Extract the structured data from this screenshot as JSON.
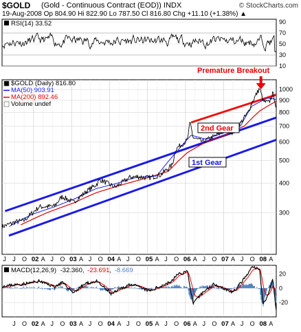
{
  "header": {
    "symbol": "$GOLD",
    "name": "(Gold - Continuous Contract (EOD)) INDX",
    "quote_line": "19-Aug-2008   Op 804.90  Hi 822.90  Lo 787.50  Cl 816.80  Chg +11.10 (+1.38%) ▲",
    "brand": "© StockCharts.com"
  },
  "colors": {
    "price": "#000000",
    "ma50": "#1a1aff",
    "ma200": "#e00000",
    "channel": "#1a1ae6",
    "breakout_line": "#ee1111",
    "macd_hist": "#4a7fbf",
    "annotation_red": "#ee0000",
    "annotation_blue": "#1a1ad6"
  },
  "chart_data": [
    {
      "type": "line",
      "panel": "rsi",
      "label": "RSI(14) 33.52",
      "y_ticks": [
        10,
        30,
        50,
        70,
        90
      ],
      "ylim": [
        10,
        95
      ],
      "reference_lines": [
        30,
        70
      ],
      "series": [
        {
          "name": "RSI(14)",
          "last": 33.52
        }
      ]
    },
    {
      "type": "line",
      "panel": "price",
      "y_scale": "log",
      "ylim": [
        200,
        1100
      ],
      "y_ticks": [
        300,
        400,
        500,
        600,
        700,
        800,
        900,
        1000
      ],
      "legend": {
        "placement": "top-left",
        "entries": [
          {
            "label": "$GOLD (Daily) 816.80",
            "key": "price"
          },
          {
            "label": "MA(50) 903.91",
            "key": "ma50"
          },
          {
            "label": "MA(200) 892.46",
            "key": "ma200"
          },
          {
            "label": "Volume undef",
            "key": "volume"
          }
        ]
      },
      "x_ticks": [
        "J",
        "J",
        "O",
        "02",
        "A",
        "J",
        "O",
        "03",
        "A",
        "J",
        "O",
        "04",
        "A",
        "J",
        "O",
        "05",
        "A",
        "J",
        "O",
        "06",
        "A",
        "J",
        "O",
        "07",
        "A",
        "J",
        "O",
        "08",
        "A",
        "J"
      ],
      "x_start": 2001.42,
      "x_end": 2008.64,
      "anchors": [
        [
          2001.42,
          262
        ],
        [
          2001.8,
          275
        ],
        [
          2002.0,
          278
        ],
        [
          2002.4,
          318
        ],
        [
          2002.8,
          320
        ],
        [
          2003.0,
          352
        ],
        [
          2003.3,
          332
        ],
        [
          2003.6,
          365
        ],
        [
          2003.9,
          395
        ],
        [
          2004.0,
          415
        ],
        [
          2004.3,
          392
        ],
        [
          2004.4,
          385
        ],
        [
          2004.8,
          425
        ],
        [
          2005.0,
          427
        ],
        [
          2005.3,
          422
        ],
        [
          2005.6,
          435
        ],
        [
          2005.9,
          478
        ],
        [
          2006.0,
          560
        ],
        [
          2006.3,
          610
        ],
        [
          2006.37,
          725
        ],
        [
          2006.45,
          625
        ],
        [
          2006.7,
          600
        ],
        [
          2007.0,
          632
        ],
        [
          2007.3,
          670
        ],
        [
          2007.5,
          660
        ],
        [
          2007.7,
          720
        ],
        [
          2007.9,
          800
        ],
        [
          2008.0,
          880
        ],
        [
          2008.2,
          1011
        ],
        [
          2008.3,
          890
        ],
        [
          2008.45,
          880
        ],
        [
          2008.55,
          960
        ],
        [
          2008.6,
          910
        ],
        [
          2008.64,
          817
        ]
      ],
      "ma50_anchors": [
        [
          2001.6,
          262
        ],
        [
          2002.2,
          295
        ],
        [
          2002.8,
          318
        ],
        [
          2003.3,
          342
        ],
        [
          2003.9,
          380
        ],
        [
          2004.4,
          398
        ],
        [
          2004.9,
          422
        ],
        [
          2005.5,
          430
        ],
        [
          2006.0,
          540
        ],
        [
          2006.4,
          640
        ],
        [
          2006.8,
          615
        ],
        [
          2007.3,
          660
        ],
        [
          2007.7,
          700
        ],
        [
          2008.0,
          850
        ],
        [
          2008.4,
          920
        ],
        [
          2008.55,
          915
        ],
        [
          2008.64,
          904
        ]
      ],
      "ma200_anchors": [
        [
          2001.9,
          266
        ],
        [
          2002.6,
          300
        ],
        [
          2003.3,
          330
        ],
        [
          2003.9,
          365
        ],
        [
          2004.6,
          395
        ],
        [
          2005.2,
          420
        ],
        [
          2005.8,
          450
        ],
        [
          2006.3,
          540
        ],
        [
          2006.8,
          600
        ],
        [
          2007.3,
          640
        ],
        [
          2007.8,
          700
        ],
        [
          2008.2,
          810
        ],
        [
          2008.64,
          892
        ]
      ],
      "trend_lines": [
        {
          "name": "1st Gear upper",
          "color_key": "channel",
          "from": [
            2001.5,
            305
          ],
          "to": [
            2008.64,
            760
          ]
        },
        {
          "name": "1st Gear lower",
          "color_key": "channel",
          "from": [
            2001.6,
            240
          ],
          "to": [
            2008.64,
            612
          ]
        },
        {
          "name": "2nd Gear",
          "color_key": "breakout_line",
          "from": [
            2006.4,
            725
          ],
          "to": [
            2008.64,
            950
          ]
        }
      ],
      "annotations": [
        {
          "text": "Premature Breakout",
          "color_key": "annotation_red",
          "arrow": true,
          "at": [
            2008.2,
            1011
          ]
        },
        {
          "text": "2nd Gear",
          "color_key": "annotation_red",
          "box": true
        },
        {
          "text": "1st Gear",
          "color_key": "annotation_blue",
          "box": true
        }
      ]
    },
    {
      "type": "line",
      "panel": "macd",
      "label_prefix": "MACD(12,26,9)",
      "values": [
        "-32.360",
        "-23.691",
        "-8.669"
      ],
      "y_ticks": [
        20,
        0,
        -20
      ],
      "ylim": [
        -40,
        32
      ],
      "x_ticks": [
        "J",
        "O",
        "02",
        "A",
        "J",
        "O",
        "03",
        "A",
        "J",
        "O",
        "04",
        "A",
        "J",
        "O",
        "05",
        "A",
        "J",
        "O",
        "06",
        "A",
        "J",
        "O",
        "07",
        "A",
        "J",
        "O",
        "08",
        "A",
        "J"
      ],
      "anchors": [
        [
          2001.42,
          3
        ],
        [
          2002.0,
          6
        ],
        [
          2002.4,
          10
        ],
        [
          2002.8,
          2
        ],
        [
          2003.0,
          8
        ],
        [
          2003.3,
          -6
        ],
        [
          2003.6,
          6
        ],
        [
          2003.9,
          10
        ],
        [
          2004.3,
          -8
        ],
        [
          2004.8,
          6
        ],
        [
          2005.3,
          -4
        ],
        [
          2005.9,
          10
        ],
        [
          2006.0,
          18
        ],
        [
          2006.3,
          24
        ],
        [
          2006.45,
          -22
        ],
        [
          2006.7,
          -6
        ],
        [
          2007.0,
          6
        ],
        [
          2007.5,
          -6
        ],
        [
          2007.9,
          20
        ],
        [
          2008.0,
          30
        ],
        [
          2008.2,
          26
        ],
        [
          2008.3,
          -22
        ],
        [
          2008.45,
          -6
        ],
        [
          2008.55,
          14
        ],
        [
          2008.64,
          -32
        ]
      ]
    }
  ]
}
